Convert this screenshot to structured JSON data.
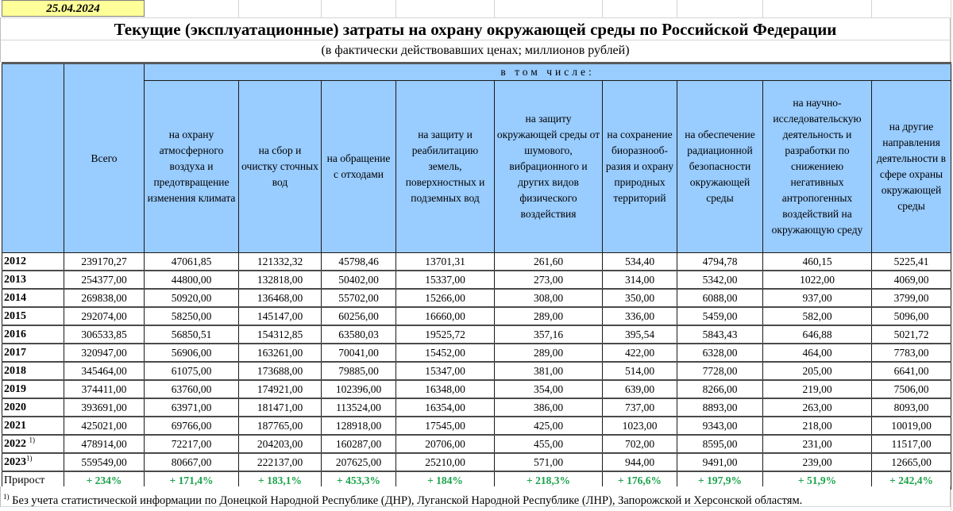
{
  "date": "25.04.2024",
  "title": "Текущие (эксплуатационные) затраты на охрану окружающей среды по Российской Федерации",
  "subtitle": "(в фактически действовавших ценах; миллионов рублей)",
  "header": {
    "year_col": "",
    "total": "Всего",
    "including": "в том числе:",
    "columns": [
      "на охрану атмосферного воздуха и предотвращение изменения климата",
      "на сбор и очистку сточных вод",
      "на обращение с отходами",
      "на защиту и реабилитацию земель, поверхностных и подземных вод",
      "на защиту окружающей среды от шумового, вибрационного и других видов физического воздействия",
      "на сохранение биоразнооб-разия и охрану природных территорий",
      "на обеспечение радиационной безопасности окружающей среды",
      "на научно-исследовательскую деятельность и разработки по снижениею негативных антропогенных воздействий на окружающую среду",
      "на другие направления деятельности в сфере охраны окружающей среды"
    ]
  },
  "rows": [
    {
      "year": "2012",
      "fn": "",
      "values": [
        "239170,27",
        "47061,85",
        "121332,32",
        "45798,46",
        "13701,31",
        "261,60",
        "534,40",
        "4794,78",
        "460,15",
        "5225,41"
      ]
    },
    {
      "year": "2013",
      "fn": "",
      "values": [
        "254377,00",
        "44800,00",
        "132818,00",
        "50402,00",
        "15337,00",
        "273,00",
        "314,00",
        "5342,00",
        "1022,00",
        "4069,00"
      ]
    },
    {
      "year": "2014",
      "fn": "",
      "values": [
        "269838,00",
        "50920,00",
        "136468,00",
        "55702,00",
        "15266,00",
        "308,00",
        "350,00",
        "6088,00",
        "937,00",
        "3799,00"
      ]
    },
    {
      "year": "2015",
      "fn": "",
      "values": [
        "292074,00",
        "58250,00",
        "145147,00",
        "60256,00",
        "16660,00",
        "289,00",
        "336,00",
        "5459,00",
        "582,00",
        "5096,00"
      ]
    },
    {
      "year": "2016",
      "fn": "",
      "values": [
        "306533,85",
        "56850,51",
        "154312,85",
        "63580,03",
        "19525,72",
        "357,16",
        "395,54",
        "5843,43",
        "646,88",
        "5021,72"
      ]
    },
    {
      "year": "2017",
      "fn": "",
      "values": [
        "320947,00",
        "56906,00",
        "163261,00",
        "70041,00",
        "15452,00",
        "289,00",
        "422,00",
        "6328,00",
        "464,00",
        "7783,00"
      ]
    },
    {
      "year": "2018",
      "fn": "",
      "values": [
        "345464,00",
        "61075,00",
        "173688,00",
        "79885,00",
        "15347,00",
        "381,00",
        "514,00",
        "7728,00",
        "205,00",
        "6641,00"
      ]
    },
    {
      "year": "2019",
      "fn": "",
      "values": [
        "374411,00",
        "63760,00",
        "174921,00",
        "102396,00",
        "16348,00",
        "354,00",
        "639,00",
        "8266,00",
        "219,00",
        "7506,00"
      ]
    },
    {
      "year": "2020",
      "fn": "",
      "values": [
        "393691,00",
        "63971,00",
        "181471,00",
        "113524,00",
        "16354,00",
        "386,00",
        "737,00",
        "8893,00",
        "263,00",
        "8093,00"
      ]
    },
    {
      "year": "2021",
      "fn": "",
      "values": [
        "425021,00",
        "69766,00",
        "187765,00",
        "128918,00",
        "17545,00",
        "425,00",
        "1023,00",
        "9343,00",
        "218,00",
        "10019,00"
      ]
    },
    {
      "year": "2022 ",
      "fn": "1)",
      "values": [
        "478914,00",
        "72217,00",
        "204203,00",
        "160287,00",
        "20706,00",
        "455,00",
        "702,00",
        "8595,00",
        "231,00",
        "11517,00"
      ]
    },
    {
      "year": "2023",
      "fn": "1)",
      "values": [
        "559549,00",
        "80667,00",
        "222137,00",
        "207625,00",
        "25210,00",
        "571,00",
        "944,00",
        "9491,00",
        "239,00",
        "12665,00"
      ]
    }
  ],
  "growth": {
    "label": "Прирост",
    "values": [
      "+ 234%",
      "+ 171,4%",
      "+ 183,1%",
      "+ 453,3%",
      "+ 184%",
      "+ 218,3%",
      "+ 176,6%",
      "+ 197,9%",
      "+ 51,9%",
      "+ 242,4%"
    ]
  },
  "footnote": {
    "mark": "1)",
    "text": " Без учета статистической информации по Донецкой Народной Республике (ДНР), Луганской Народной Республике (ЛНР), Запорожской и Херсонской областям."
  },
  "colors": {
    "header_bg": "#99ccff",
    "date_bg": "#ffff99",
    "growth_text": "#1aa34a"
  }
}
